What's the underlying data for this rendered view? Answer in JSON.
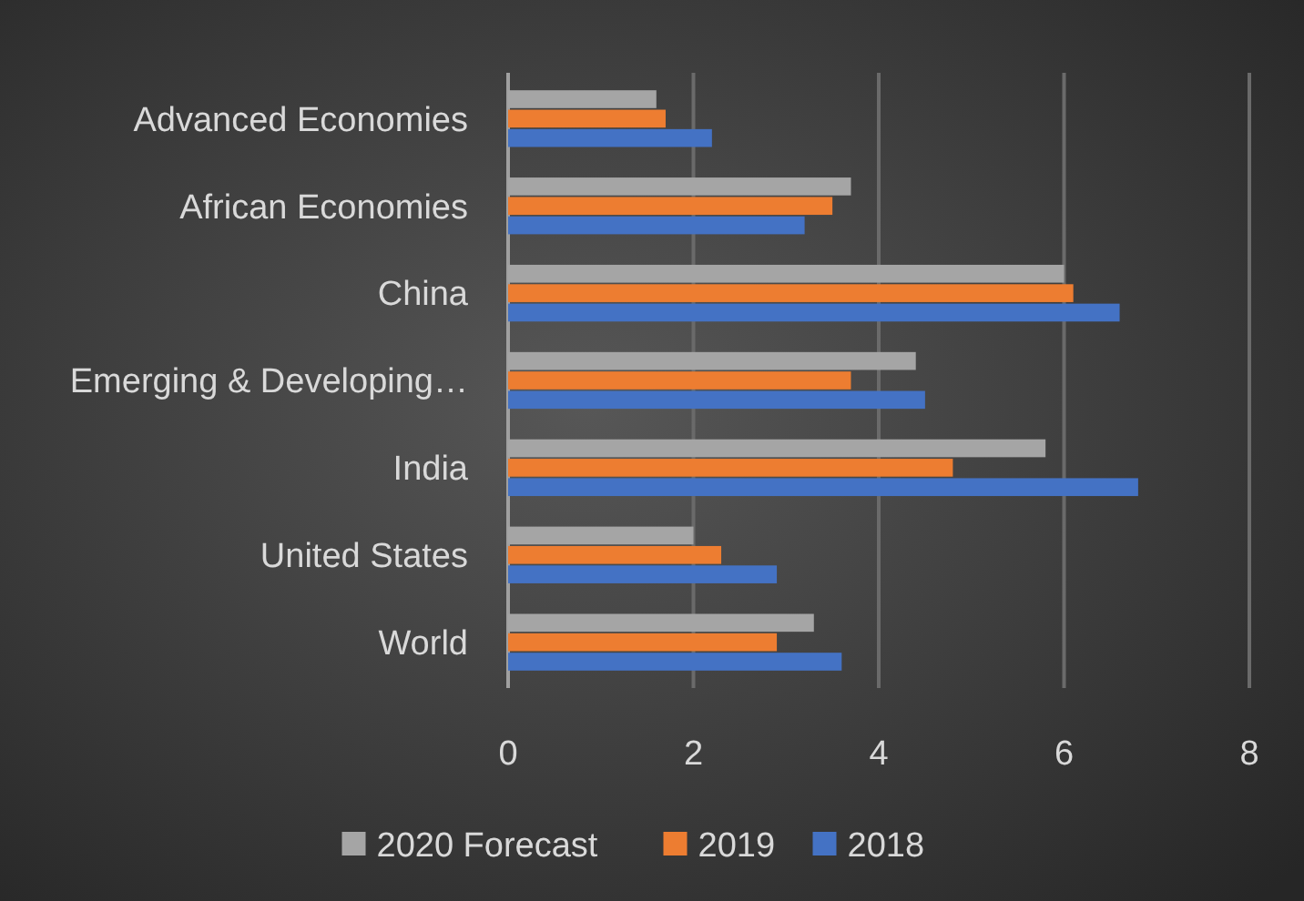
{
  "chart_data": {
    "type": "bar",
    "orientation": "horizontal",
    "categories": [
      "Advanced Economies",
      "African Economies",
      "China",
      "Emerging & Developing…",
      "India",
      "United States",
      "World"
    ],
    "series": [
      {
        "name": "2020 Forecast",
        "color": "#a5a5a5",
        "values": [
          1.6,
          3.7,
          6.0,
          4.4,
          5.8,
          2.0,
          3.3
        ]
      },
      {
        "name": "2019",
        "color": "#ed7d31",
        "values": [
          1.7,
          3.5,
          6.1,
          3.7,
          4.8,
          2.3,
          2.9
        ]
      },
      {
        "name": "2018",
        "color": "#4472c4",
        "values": [
          2.2,
          3.2,
          6.6,
          4.5,
          6.8,
          2.9,
          3.6
        ]
      }
    ],
    "xlim": [
      0,
      8
    ],
    "xticks": [
      0,
      2,
      4,
      6,
      8
    ],
    "grid": "x",
    "legend": "bottom"
  }
}
